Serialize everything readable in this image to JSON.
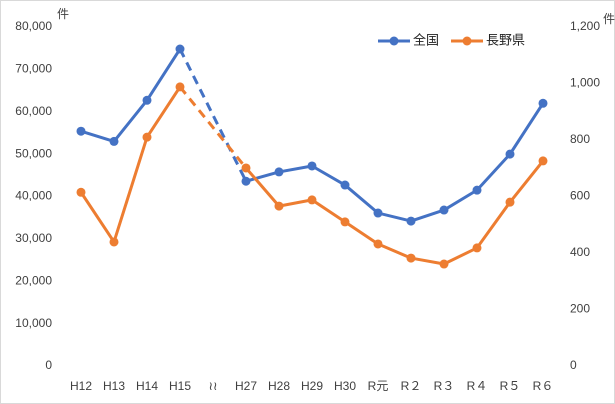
{
  "chart_data": {
    "type": "line",
    "categories": [
      "H12",
      "H13",
      "H14",
      "H15",
      "≀≀",
      "H27",
      "H28",
      "H29",
      "H30",
      "R元",
      "R２",
      "R３",
      "R４",
      "R５",
      "R６"
    ],
    "series": [
      {
        "name": "全国",
        "color": "#4472c4",
        "values": [
          55400,
          53000,
          62700,
          74800,
          null,
          43600,
          45800,
          47200,
          42700,
          36100,
          34200,
          36800,
          41500,
          50000,
          62000
        ]
      },
      {
        "name": "長野県",
        "color": "#ed7d31",
        "axis": "y2",
        "values": [
          615,
          439,
          810,
          988,
          null,
          701,
          566,
          588,
          510,
          432,
          382,
          361,
          418,
          580,
          726
        ]
      }
    ],
    "y_unit": "件",
    "y2_unit": "件",
    "ylim": [
      0,
      80000
    ],
    "yticks": [
      0,
      {
        "value": 10000,
        "label": "10,000"
      },
      {
        "value": 20000,
        "label": "20,000"
      },
      {
        "value": 30000,
        "label": "30,000"
      },
      {
        "value": 40000,
        "label": "40,000"
      },
      {
        "value": 50000,
        "label": "50,000"
      },
      {
        "value": 60000,
        "label": "60,000"
      },
      {
        "value": 70000,
        "label": "70,000"
      },
      {
        "value": 80000,
        "label": "80,000"
      }
    ],
    "y2lim": [
      0,
      1200
    ],
    "y2ticks": [
      0,
      200,
      400,
      600,
      800,
      {
        "value": 1000,
        "label": "1,000"
      },
      {
        "value": 1200,
        "label": "1,200"
      }
    ],
    "legend": "top-right",
    "grid": false
  }
}
